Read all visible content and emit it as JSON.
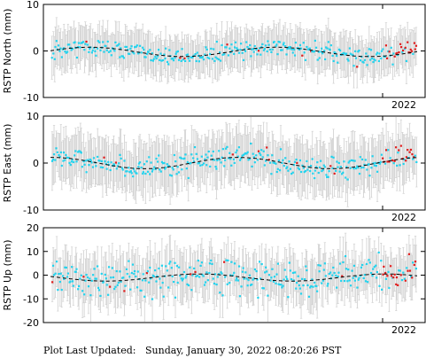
{
  "footer": {
    "label": "Plot Last Updated:",
    "value": "Sunday, January 30, 2022 08:20:26 PST"
  },
  "colors": {
    "observed": "#22d3ee",
    "recent": "#e11d1d",
    "error_bar": "#cfcfcf",
    "model": "#000000"
  },
  "chart_data": [
    {
      "type": "scatter",
      "ylabel": "RSTP North (mm)",
      "ylim": [
        -10,
        10
      ],
      "yticks": [
        -10,
        0,
        10
      ],
      "year_label": "2022",
      "trend_amp": 1.0,
      "trend_offset": -0.2,
      "scatter_spread": 1.3,
      "error_half": 4
    },
    {
      "type": "scatter",
      "ylabel": "RSTP East (mm)",
      "ylim": [
        -10,
        10
      ],
      "yticks": [
        -10,
        0,
        10
      ],
      "year_label": "2022",
      "trend_amp": 1.2,
      "trend_offset": 0.0,
      "scatter_spread": 1.6,
      "error_half": 5
    },
    {
      "type": "scatter",
      "ylabel": "RSTP Up (mm)",
      "ylim": [
        -20,
        20
      ],
      "yticks": [
        -20,
        -10,
        0,
        10,
        20
      ],
      "year_label": "2022",
      "trend_amp": 1.5,
      "trend_offset": -1.0,
      "scatter_spread": 5.0,
      "error_half": 9
    }
  ]
}
